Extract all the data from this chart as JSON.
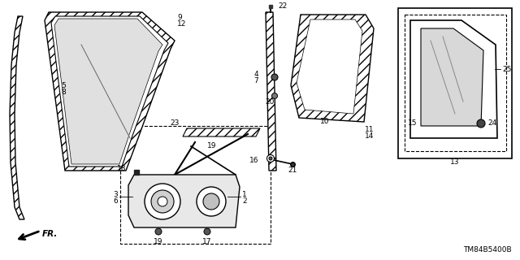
{
  "bg_color": "#ffffff",
  "line_color": "#000000",
  "text_color": "#000000",
  "diagram_id": "TM84B5400B",
  "figsize": [
    6.4,
    3.2
  ],
  "dpi": 100
}
